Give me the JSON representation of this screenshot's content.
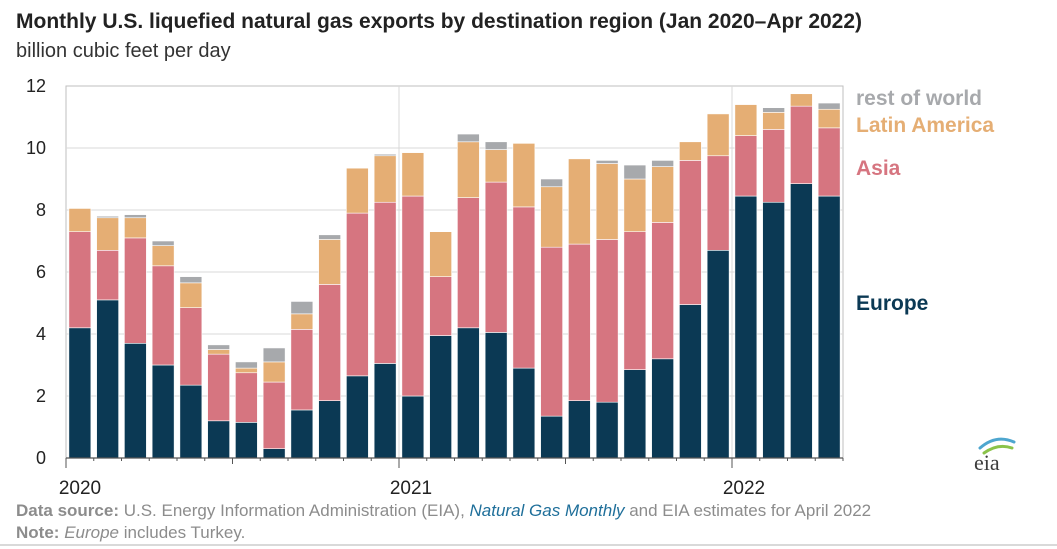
{
  "title": "Monthly U.S. liquefied natural gas exports by destination region (Jan 2020–Apr 2022)",
  "subtitle": "billion cubic feet per day",
  "footer": {
    "source_label": "Data source:",
    "source_text_1": " U.S. Energy Information Administration (EIA), ",
    "source_link": "Natural Gas Monthly",
    "source_text_2": " and EIA estimates for April 2022",
    "note_label": "Note:",
    "note_italic": "Europe",
    "note_text": " includes Turkey."
  },
  "logo_text": "eia",
  "chart_data": {
    "type": "bar",
    "stacked": true,
    "title": "Monthly U.S. liquefied natural gas exports by destination region (Jan 2020–Apr 2022)",
    "ylabel": "billion cubic feet per day",
    "ylim": [
      0,
      12
    ],
    "yticks": [
      0,
      2,
      4,
      6,
      8,
      10,
      12
    ],
    "grid": true,
    "legend_placement": "right",
    "categories": [
      "2020-01",
      "2020-02",
      "2020-03",
      "2020-04",
      "2020-05",
      "2020-06",
      "2020-07",
      "2020-08",
      "2020-09",
      "2020-10",
      "2020-11",
      "2020-12",
      "2021-01",
      "2021-02",
      "2021-03",
      "2021-04",
      "2021-05",
      "2021-06",
      "2021-07",
      "2021-08",
      "2021-09",
      "2021-10",
      "2021-11",
      "2021-12",
      "2022-01",
      "2022-02",
      "2022-03",
      "2022-04"
    ],
    "x_tick_labels": [
      {
        "category": "2020-01",
        "label": "2020"
      },
      {
        "category": "2021-01",
        "label": "2021"
      },
      {
        "category": "2022-01",
        "label": "2022"
      }
    ],
    "series": [
      {
        "name": "Europe",
        "color": "#0b3954",
        "values": [
          4.2,
          5.1,
          3.7,
          3.0,
          2.35,
          1.2,
          1.15,
          0.3,
          1.55,
          1.85,
          2.65,
          3.05,
          2.0,
          3.95,
          4.2,
          4.05,
          2.9,
          1.35,
          1.85,
          1.8,
          2.85,
          3.2,
          4.95,
          6.7,
          8.45,
          8.25,
          8.85,
          8.45
        ]
      },
      {
        "name": "Asia",
        "color": "#d67580",
        "values": [
          3.1,
          1.6,
          3.4,
          3.2,
          2.5,
          2.15,
          1.6,
          2.15,
          2.6,
          3.75,
          5.25,
          5.2,
          6.45,
          1.9,
          4.2,
          4.85,
          5.2,
          5.45,
          5.05,
          5.25,
          4.45,
          4.4,
          4.65,
          3.05,
          1.95,
          2.35,
          2.5,
          2.2
        ]
      },
      {
        "name": "Latin America",
        "color": "#e5ae74",
        "values": [
          0.75,
          1.05,
          0.65,
          0.65,
          0.8,
          0.15,
          0.15,
          0.65,
          0.5,
          1.45,
          1.45,
          1.5,
          1.4,
          1.45,
          1.8,
          1.05,
          2.05,
          1.95,
          2.75,
          2.45,
          1.7,
          1.8,
          0.6,
          1.35,
          1.0,
          0.55,
          0.4,
          0.6
        ]
      },
      {
        "name": "rest of world",
        "color": "#a7a9ac",
        "values": [
          0.0,
          0.05,
          0.1,
          0.15,
          0.2,
          0.15,
          0.2,
          0.45,
          0.4,
          0.15,
          0.0,
          0.05,
          0.0,
          0.0,
          0.25,
          0.25,
          0.0,
          0.25,
          0.0,
          0.1,
          0.45,
          0.2,
          0.0,
          0.0,
          0.0,
          0.15,
          0.0,
          0.2
        ]
      }
    ],
    "legend": [
      {
        "label": "rest of world",
        "color": "#a7a9ac"
      },
      {
        "label": "Latin America",
        "color": "#e5ae74"
      },
      {
        "label": "Asia",
        "color": "#d67580"
      },
      {
        "label": "Europe",
        "color": "#0b3954"
      }
    ]
  }
}
